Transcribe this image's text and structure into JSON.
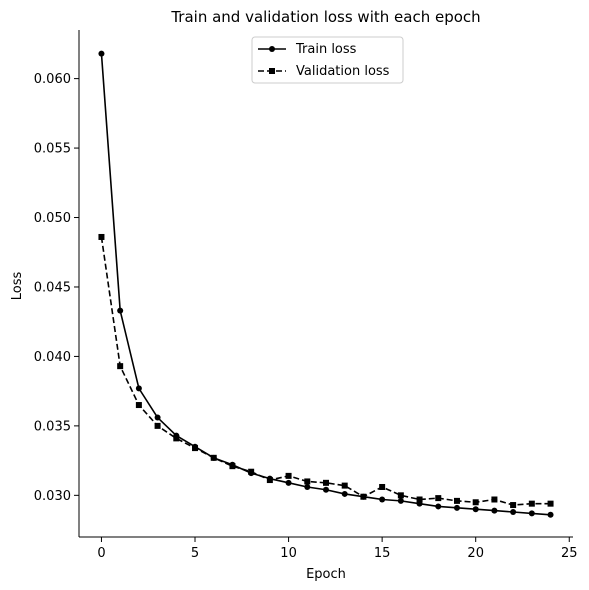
{
  "chart_data": {
    "type": "line",
    "title": "Train and validation loss with each epoch",
    "xlabel": "Epoch",
    "ylabel": "Loss",
    "xlim": [
      -1.2,
      25.2
    ],
    "ylim": [
      0.027,
      0.0635
    ],
    "xticks": [
      0,
      5,
      10,
      15,
      20,
      25
    ],
    "yticks": [
      0.03,
      0.035,
      0.04,
      0.045,
      0.05,
      0.055,
      0.06
    ],
    "xtick_labels": [
      "0",
      "5",
      "10",
      "15",
      "20",
      "25"
    ],
    "ytick_labels": [
      "0.030",
      "0.035",
      "0.040",
      "0.045",
      "0.050",
      "0.055",
      "0.060"
    ],
    "legend": {
      "position": "top-center",
      "entries": [
        "Train loss",
        "Validation loss"
      ]
    },
    "grid": false,
    "series": [
      {
        "name": "Train loss",
        "color": "#000000",
        "linestyle": "solid",
        "marker": "circle",
        "x": [
          0,
          1,
          2,
          3,
          4,
          5,
          6,
          7,
          8,
          9,
          10,
          11,
          12,
          13,
          14,
          15,
          16,
          17,
          18,
          19,
          20,
          21,
          22,
          23,
          24
        ],
        "values": [
          0.0618,
          0.0433,
          0.0377,
          0.0356,
          0.0343,
          0.0335,
          0.0327,
          0.0322,
          0.0316,
          0.0312,
          0.0309,
          0.0306,
          0.0304,
          0.0301,
          0.0299,
          0.0297,
          0.0296,
          0.0294,
          0.0292,
          0.0291,
          0.029,
          0.0289,
          0.0288,
          0.0287,
          0.0286
        ]
      },
      {
        "name": "Validation loss",
        "color": "#000000",
        "linestyle": "dashed",
        "marker": "square",
        "x": [
          0,
          1,
          2,
          3,
          4,
          5,
          6,
          7,
          8,
          9,
          10,
          11,
          12,
          13,
          14,
          15,
          16,
          17,
          18,
          19,
          20,
          21,
          22,
          23,
          24
        ],
        "values": [
          0.0486,
          0.0393,
          0.0365,
          0.035,
          0.0341,
          0.0334,
          0.0327,
          0.0321,
          0.0317,
          0.0311,
          0.0314,
          0.031,
          0.0309,
          0.0307,
          0.0299,
          0.0306,
          0.03,
          0.0297,
          0.0298,
          0.0296,
          0.0295,
          0.0297,
          0.0293,
          0.0294,
          0.0294
        ]
      }
    ]
  }
}
